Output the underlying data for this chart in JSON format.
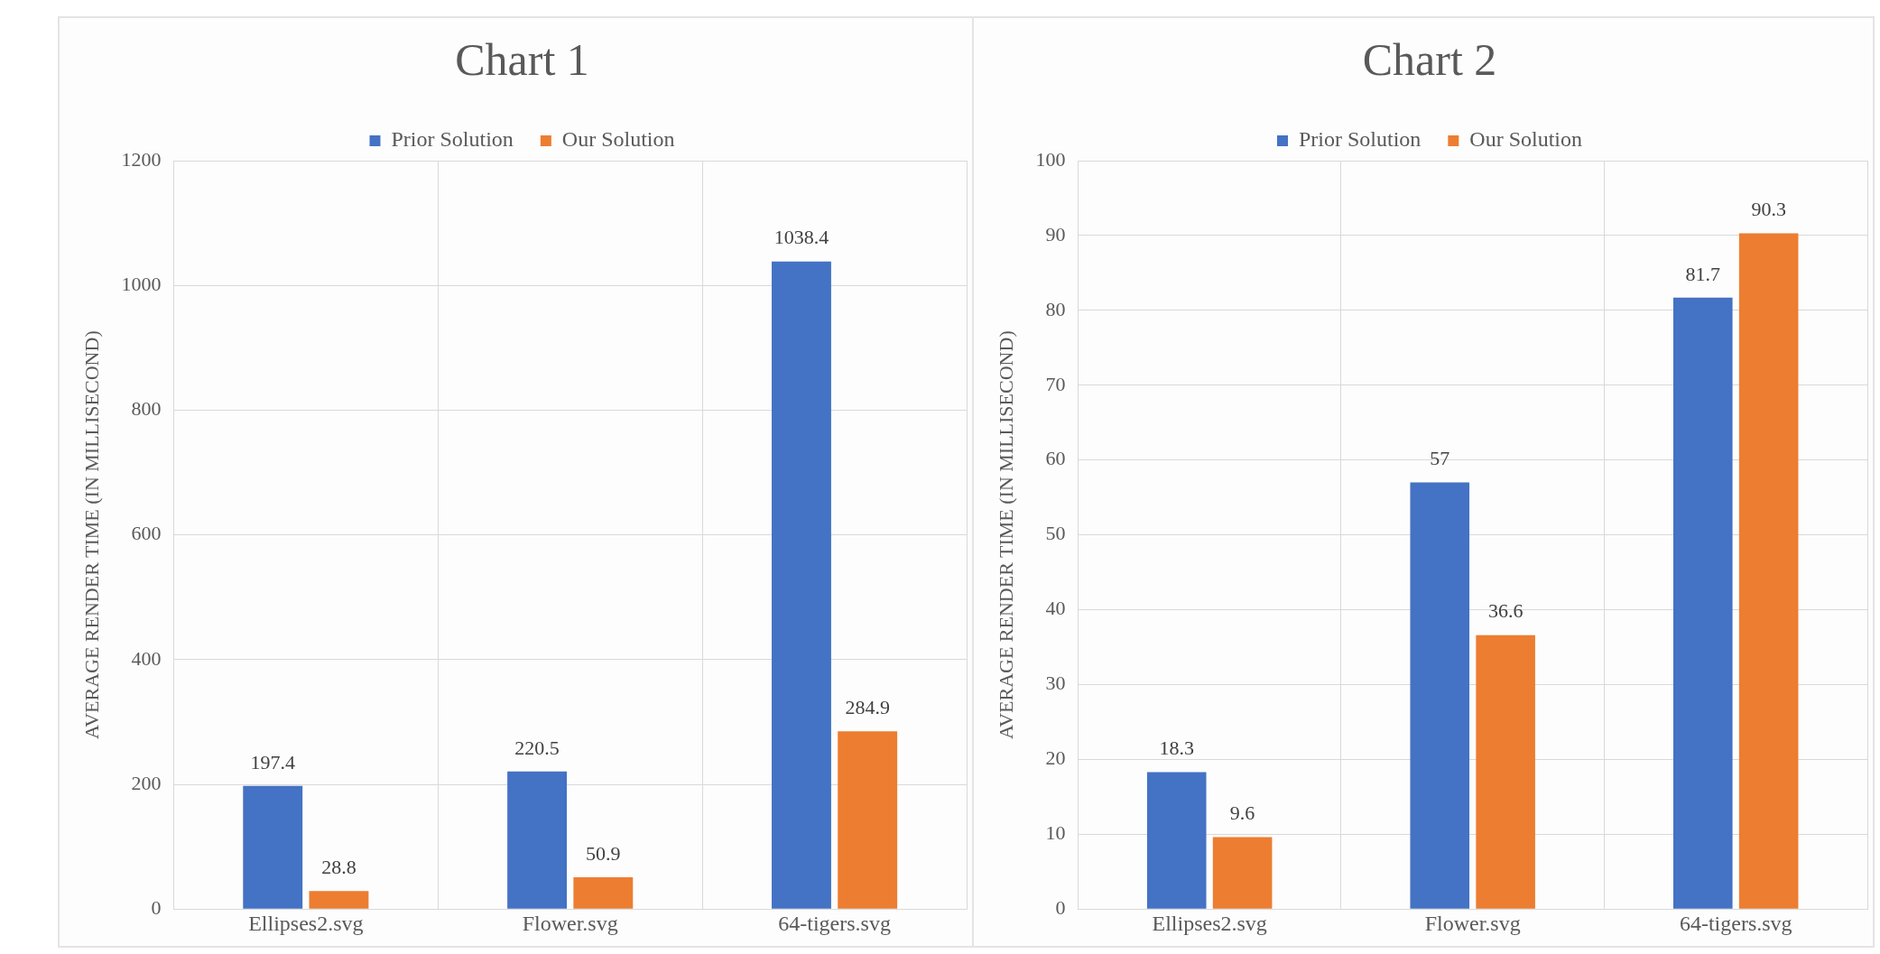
{
  "chart_data": [
    {
      "type": "bar",
      "title": "Chart 1",
      "ylabel": "AVERAGE RENDER TIME (IN MILLISECOND)",
      "categories": [
        "Ellipses2.svg",
        "Flower.svg",
        "64-tigers.svg"
      ],
      "series": [
        {
          "name": "Prior Solution",
          "color": "#4472c4",
          "values": [
            197.4,
            220.5,
            1038.4
          ]
        },
        {
          "name": "Our Solution",
          "color": "#ed7d31",
          "values": [
            28.8,
            50.9,
            284.9
          ]
        }
      ],
      "ylim": [
        0,
        1200
      ],
      "yticks": [
        0,
        200,
        400,
        600,
        800,
        1000,
        1200
      ],
      "grid": true,
      "legend": "top",
      "data_labels": true
    },
    {
      "type": "bar",
      "title": "Chart 2",
      "ylabel": "AVERAGE RENDER TIME (IN MILLISECOND)",
      "categories": [
        "Ellipses2.svg",
        "Flower.svg",
        "64-tigers.svg"
      ],
      "series": [
        {
          "name": "Prior Solution",
          "color": "#4472c4",
          "values": [
            18.3,
            57,
            81.7
          ]
        },
        {
          "name": "Our Solution",
          "color": "#ed7d31",
          "values": [
            9.6,
            36.6,
            90.3
          ]
        }
      ],
      "ylim": [
        0,
        100
      ],
      "yticks": [
        0,
        10,
        20,
        30,
        40,
        50,
        60,
        70,
        80,
        90,
        100
      ],
      "grid": true,
      "legend": "top",
      "data_labels": true
    }
  ]
}
